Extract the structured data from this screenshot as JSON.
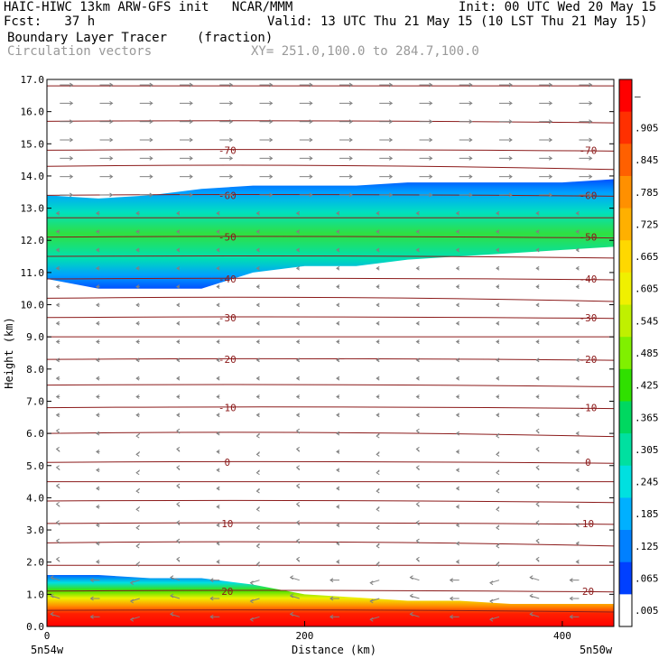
{
  "header": {
    "line1_left": "HAIC-HIWC 13km ARW-GFS init   NCAR/MMM",
    "line1_right": "Init: 00 UTC Wed 20 May 15",
    "line2_left": "Fcst:   37 h",
    "line2_right": "Valid: 13 UTC Thu 21 May 15 (10 LST Thu 21 May 15)",
    "line3_field": "Boundary Layer Tracer",
    "line3_units": "(fraction)",
    "line4_field": "Circulation vectors",
    "line4_xy": "XY= 251.0,100.0 to 284.7,100.0"
  },
  "chart_data": {
    "type": "heatmap",
    "xlabel": "Distance (km)",
    "ylabel": "Height (km)",
    "xlim": [
      0,
      440
    ],
    "ylim": [
      0,
      17
    ],
    "x_ticks": [
      {
        "value": 0,
        "label": "0"
      },
      {
        "value": 200,
        "label": "200"
      },
      {
        "value": 400,
        "label": "400"
      }
    ],
    "x_end_labels": {
      "left": "5n54w",
      "right": "5n50w"
    },
    "y_ticks": [
      "0.0",
      "1.0",
      "2.0",
      "3.0",
      "4.0",
      "5.0",
      "6.0",
      "7.0",
      "8.0",
      "9.0",
      "10.0",
      "11.0",
      "12.0",
      "13.0",
      "14.0",
      "15.0",
      "16.0",
      "17.0"
    ],
    "colorbar": {
      "labels": [
        "–",
        ".905",
        ".845",
        ".785",
        ".725",
        ".665",
        ".605",
        ".545",
        ".485",
        ".425",
        ".365",
        ".305",
        ".245",
        ".185",
        ".125",
        ".065",
        ".005"
      ],
      "colors": [
        "#ff0000",
        "#ff3000",
        "#ff6000",
        "#ff9000",
        "#ffb000",
        "#ffd800",
        "#f0f000",
        "#c0f000",
        "#80f000",
        "#30e000",
        "#00d860",
        "#00e0a0",
        "#00e0e0",
        "#00b0ff",
        "#0080ff",
        "#0040ff",
        "#ffffff"
      ]
    },
    "isotherms": [
      {
        "label": "-70",
        "height": 14.8
      },
      {
        "label": "-60",
        "height": 13.4
      },
      {
        "label": "-50",
        "height": 12.1
      },
      {
        "label": "-40",
        "height": 10.8
      },
      {
        "label": "-30",
        "height": 9.6
      },
      {
        "label": "-20",
        "height": 8.3
      },
      {
        "label": "-10",
        "height": 6.8
      },
      {
        "label": "0",
        "height": 5.1
      },
      {
        "label": "10",
        "height": 3.2
      },
      {
        "label": "20",
        "height": 1.1
      }
    ],
    "upper_layer_top": [
      13.4,
      13.3,
      13.4,
      13.6,
      13.7,
      13.7,
      13.7,
      13.8,
      13.8,
      13.8,
      13.8,
      13.9
    ],
    "upper_layer_bottom": [
      10.8,
      10.5,
      10.5,
      10.5,
      11.0,
      11.2,
      11.2,
      11.4,
      11.5,
      11.6,
      11.7,
      11.8
    ],
    "lower_layer_top": [
      1.6,
      1.6,
      1.5,
      1.5,
      1.3,
      1.0,
      0.9,
      0.8,
      0.8,
      0.7,
      0.7,
      0.7
    ],
    "profile_x": [
      0,
      40,
      80,
      120,
      160,
      200,
      240,
      280,
      320,
      360,
      400,
      440
    ]
  }
}
